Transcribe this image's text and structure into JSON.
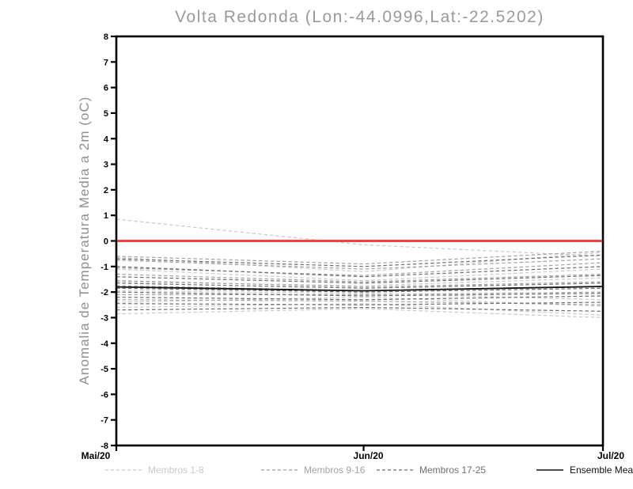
{
  "chart_data": {
    "type": "line",
    "title": "Volta Redonda (Lon:-44.0996,Lat:-22.5202)",
    "ylabel": "Anomalia de Temperatura Media a 2m (oC)",
    "xlabel": "",
    "ylim": [
      -8,
      8
    ],
    "y_ticks": [
      8,
      7,
      6,
      5,
      4,
      3,
      2,
      1,
      0,
      -1,
      -2,
      -3,
      -4,
      -5,
      -6,
      -7,
      -8
    ],
    "x_tick_labels": [
      "Mai/20",
      "Jun/20",
      "Jul/20"
    ],
    "x_day_offsets": [
      0,
      31,
      61
    ],
    "grid": false,
    "legend_position": "bottom",
    "zero_line": {
      "value": 0,
      "color": "#f24141"
    },
    "groups": [
      {
        "name": "Membros 1-8",
        "color": "#c9c9c9",
        "series": [
          {
            "values": [
              0.85,
              -0.15,
              -0.6
            ]
          },
          {
            "values": [
              -0.65,
              -1.2,
              -0.45
            ]
          },
          {
            "values": [
              -1.1,
              -1.55,
              -1.1
            ]
          },
          {
            "values": [
              -1.6,
              -1.75,
              -1.45
            ]
          },
          {
            "values": [
              -1.95,
              -2.05,
              -2.3
            ]
          },
          {
            "values": [
              -2.4,
              -2.2,
              -2.55
            ]
          },
          {
            "values": [
              -2.6,
              -2.45,
              -2.9
            ]
          },
          {
            "values": [
              -2.85,
              -2.65,
              -3.0
            ]
          }
        ]
      },
      {
        "name": "Membros 9-16",
        "color": "#a2a2a2",
        "series": [
          {
            "values": [
              -0.6,
              -0.9,
              -0.4
            ]
          },
          {
            "values": [
              -0.75,
              -1.1,
              -0.7
            ]
          },
          {
            "values": [
              -1.05,
              -1.35,
              -0.85
            ]
          },
          {
            "values": [
              -1.3,
              -1.6,
              -1.3
            ]
          },
          {
            "values": [
              -1.55,
              -1.8,
              -1.6
            ]
          },
          {
            "values": [
              -1.75,
              -1.95,
              -1.8
            ]
          },
          {
            "values": [
              -2.1,
              -2.1,
              -2.0
            ]
          },
          {
            "values": [
              -2.3,
              -2.35,
              -2.5
            ]
          }
        ]
      },
      {
        "name": "Membros 17-25",
        "color": "#6e6e6e",
        "series": [
          {
            "values": [
              -0.7,
              -1.0,
              -0.55
            ]
          },
          {
            "values": [
              -1.0,
              -1.4,
              -1.0
            ]
          },
          {
            "values": [
              -1.4,
              -1.65,
              -1.35
            ]
          },
          {
            "values": [
              -1.65,
              -1.85,
              -1.65
            ]
          },
          {
            "values": [
              -1.85,
              -2.0,
              -1.85
            ]
          },
          {
            "values": [
              -2.0,
              -2.15,
              -2.05
            ]
          },
          {
            "values": [
              -2.2,
              -2.3,
              -2.15
            ]
          },
          {
            "values": [
              -2.45,
              -2.5,
              -2.4
            ]
          },
          {
            "values": [
              -2.7,
              -2.6,
              -2.75
            ]
          }
        ]
      }
    ],
    "ensemble_mean": {
      "name": "Ensemble Mean",
      "color": "#111111",
      "values": [
        -1.8,
        -1.95,
        -1.78
      ]
    }
  },
  "legend": [
    {
      "label": "Membros 1-8",
      "color": "#c9c9c9",
      "style": "dashed"
    },
    {
      "label": "Membros 9-16",
      "color": "#a2a2a2",
      "style": "dashed"
    },
    {
      "label": "Membros 17-25",
      "color": "#6e6e6e",
      "style": "dashed"
    },
    {
      "label": "Ensemble Mean",
      "color": "#111111",
      "style": "solid"
    }
  ]
}
